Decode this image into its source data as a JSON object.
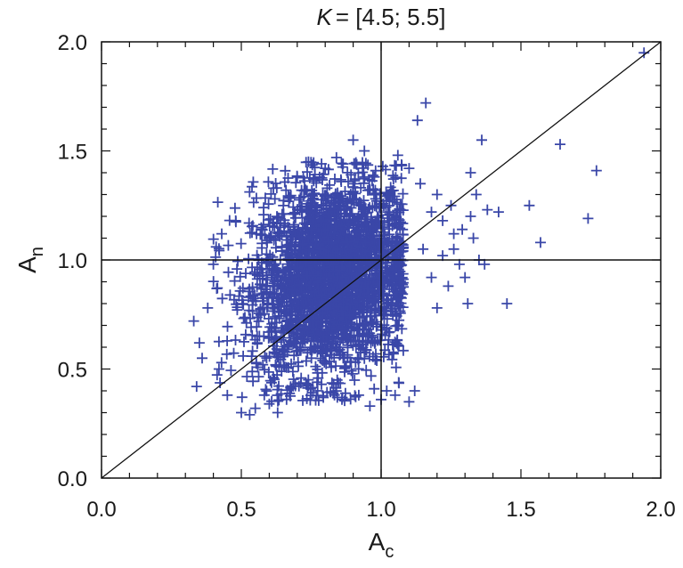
{
  "chart_data": {
    "type": "scatter",
    "title": {
      "prefix": "K",
      "text": "= [4.5; 5.5]"
    },
    "xlabel": {
      "base": "A",
      "sub": "c"
    },
    "ylabel": {
      "base": "A",
      "sub": "n"
    },
    "xlim": [
      0.0,
      2.0
    ],
    "ylim": [
      0.0,
      2.0
    ],
    "xticks": [
      "0.0",
      "0.5",
      "1.0",
      "1.5",
      "2.0"
    ],
    "yticks": [
      "0.0",
      "0.5",
      "1.0",
      "1.5",
      "2.0"
    ],
    "reference_lines": {
      "vertical_x": 1.0,
      "horizontal_y": 1.0,
      "diagonal": "y = x"
    },
    "marker": "plus",
    "color": "#3a47a8",
    "grid": false,
    "cluster": {
      "center": [
        0.82,
        0.92
      ],
      "approx_count": 2800
    },
    "points": [
      [
        0.33,
        0.72
      ],
      [
        0.35,
        0.62
      ],
      [
        0.36,
        0.55
      ],
      [
        0.34,
        0.42
      ],
      [
        0.38,
        0.78
      ],
      [
        0.4,
        0.98
      ],
      [
        0.41,
        1.06
      ],
      [
        0.43,
        1.12
      ],
      [
        0.42,
        0.5
      ],
      [
        0.45,
        0.38
      ],
      [
        0.48,
        1.18
      ],
      [
        0.5,
        0.3
      ],
      [
        0.53,
        0.29
      ],
      [
        0.55,
        0.32
      ],
      [
        0.58,
        1.24
      ],
      [
        0.6,
        0.34
      ],
      [
        0.62,
        1.28
      ],
      [
        0.63,
        0.3
      ],
      [
        0.66,
        1.32
      ],
      [
        0.7,
        1.38
      ],
      [
        0.74,
        1.45
      ],
      [
        0.78,
        1.38
      ],
      [
        0.8,
        1.42
      ],
      [
        0.84,
        1.47
      ],
      [
        0.86,
        0.36
      ],
      [
        0.9,
        1.55
      ],
      [
        0.92,
        0.38
      ],
      [
        0.94,
        1.5
      ],
      [
        0.96,
        0.33
      ],
      [
        1.0,
        0.36
      ],
      [
        1.02,
        0.4
      ],
      [
        1.05,
        0.38
      ],
      [
        1.1,
        0.35
      ],
      [
        1.12,
        0.4
      ],
      [
        1.13,
        1.64
      ],
      [
        1.16,
        1.72
      ],
      [
        1.06,
        1.48
      ],
      [
        1.1,
        1.42
      ],
      [
        1.14,
        1.35
      ],
      [
        1.18,
        1.22
      ],
      [
        1.2,
        1.3
      ],
      [
        1.22,
        1.18
      ],
      [
        1.25,
        1.25
      ],
      [
        1.26,
        1.05
      ],
      [
        1.28,
        0.98
      ],
      [
        1.29,
        1.14
      ],
      [
        1.3,
        0.92
      ],
      [
        1.31,
        0.8
      ],
      [
        1.32,
        1.2
      ],
      [
        1.33,
        1.1
      ],
      [
        1.34,
        1.3
      ],
      [
        1.35,
        1.0
      ],
      [
        1.37,
        0.98
      ],
      [
        1.38,
        1.23
      ],
      [
        1.36,
        1.55
      ],
      [
        1.32,
        1.4
      ],
      [
        1.42,
        1.22
      ],
      [
        1.45,
        0.8
      ],
      [
        1.53,
        1.25
      ],
      [
        1.57,
        1.08
      ],
      [
        1.64,
        1.53
      ],
      [
        1.74,
        1.19
      ],
      [
        1.77,
        1.41
      ],
      [
        1.94,
        1.95
      ],
      [
        1.2,
        0.78
      ],
      [
        1.18,
        0.92
      ],
      [
        1.22,
        1.02
      ],
      [
        1.24,
        0.88
      ],
      [
        1.26,
        1.12
      ],
      [
        1.15,
        1.05
      ]
    ]
  }
}
